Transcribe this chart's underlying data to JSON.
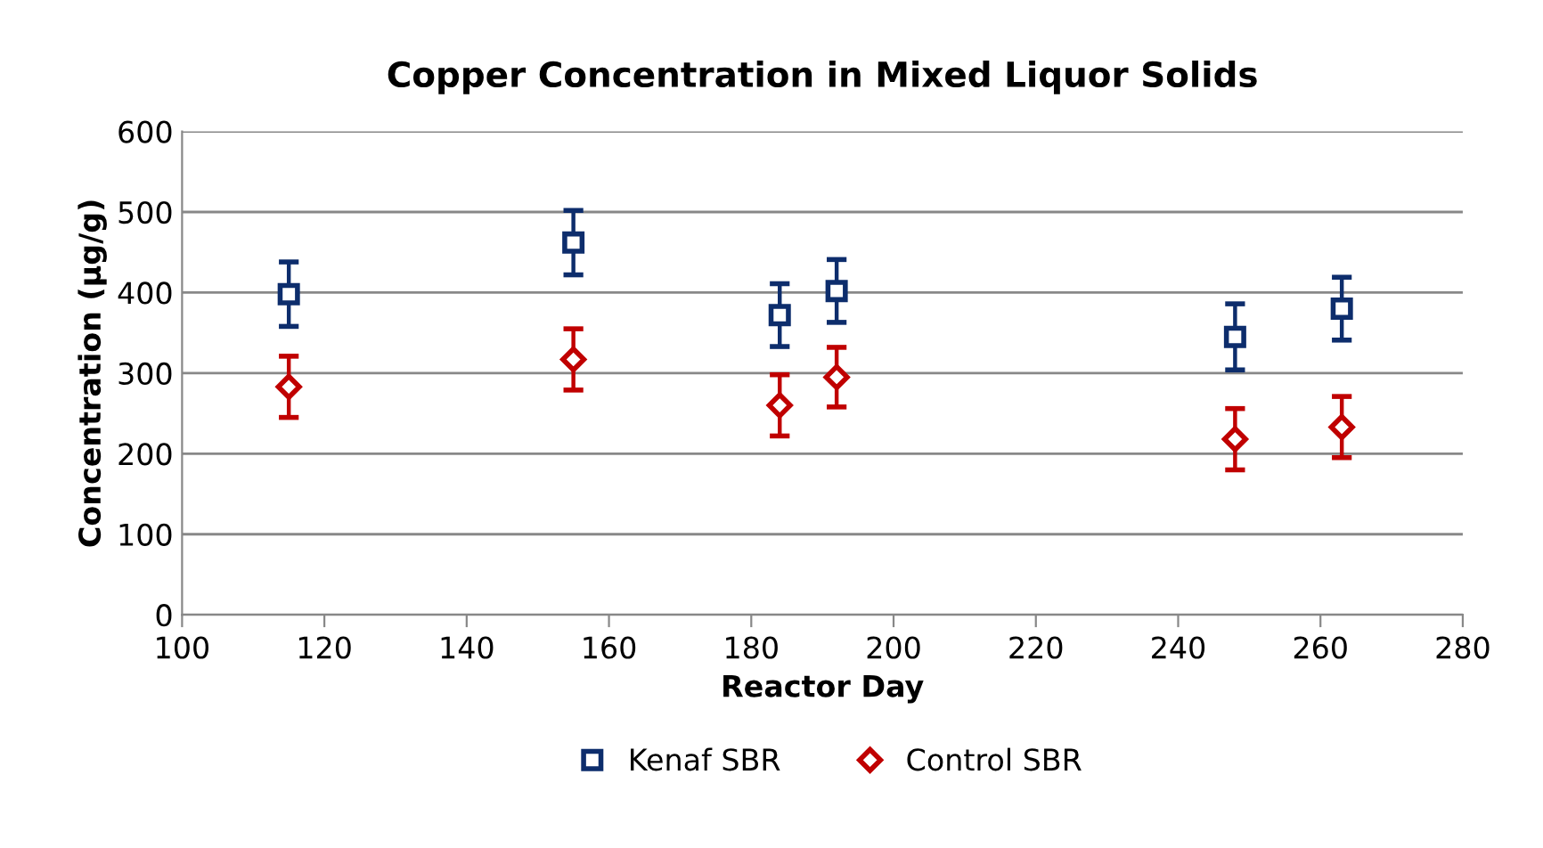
{
  "chart_data": {
    "type": "scatter",
    "title": "Copper Concentration in Mixed Liquor Solids",
    "xlabel": "Reactor Day",
    "ylabel": "Concentration (µg/g)",
    "x": [
      115,
      155,
      184,
      192,
      248,
      263
    ],
    "series": [
      {
        "name": "Kenaf SBR",
        "color": "#0d2d6c",
        "marker": "square",
        "values": [
          398,
          462,
          372,
          402,
          345,
          380
        ],
        "errors": [
          40,
          40,
          39,
          39,
          41,
          39
        ]
      },
      {
        "name": "Control SBR",
        "color": "#c00000",
        "marker": "diamond",
        "values": [
          283,
          317,
          260,
          295,
          218,
          233
        ],
        "errors": [
          38,
          38,
          38,
          37,
          38,
          38
        ]
      }
    ],
    "xlim": [
      100,
      280
    ],
    "xticks": [
      100,
      120,
      140,
      160,
      180,
      200,
      220,
      240,
      260,
      280
    ],
    "ylim": [
      0,
      600
    ],
    "yticks": [
      0,
      100,
      200,
      300,
      400,
      500,
      600
    ],
    "grid": "y",
    "legend": "bottom"
  }
}
